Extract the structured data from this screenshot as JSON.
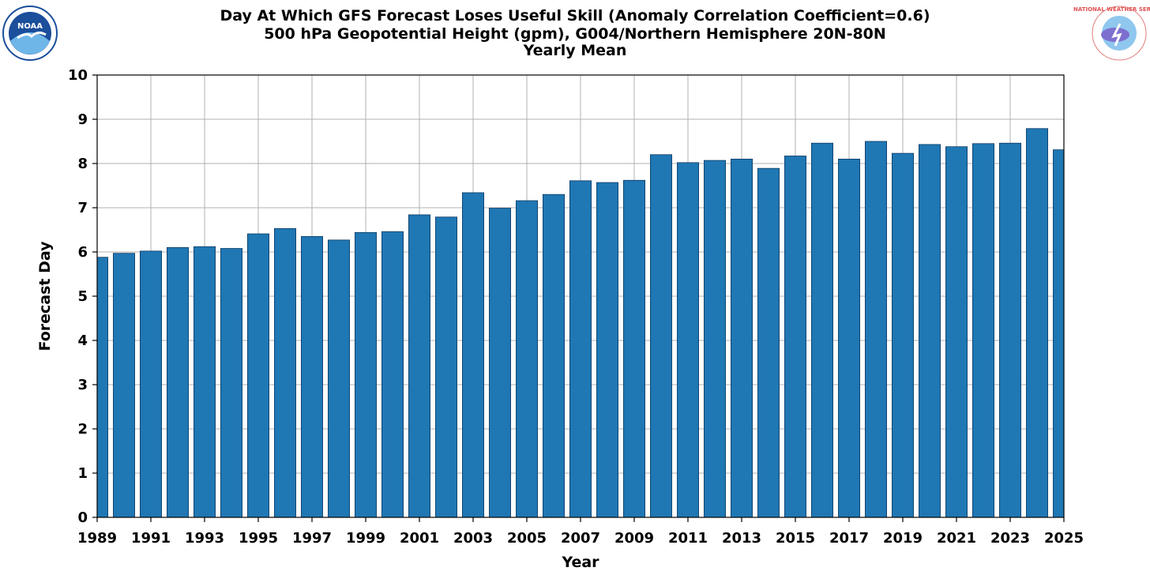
{
  "chart_data": {
    "type": "bar",
    "title_lines": [
      "Day At Which GFS Forecast Loses Useful Skill (Anomaly Correlation Coefficient=0.6)",
      "500 hPa Geopotential Height (gpm), G004/Northern Hemisphere 20N-80N",
      "Yearly Mean"
    ],
    "xlabel": "Year",
    "ylabel": "Forecast Day",
    "xlim": [
      1989,
      2025
    ],
    "ylim": [
      0,
      10
    ],
    "yticks": [
      "0",
      "1",
      "2",
      "3",
      "4",
      "5",
      "6",
      "7",
      "8",
      "9",
      "10"
    ],
    "xticks": [
      "1989",
      "1991",
      "1993",
      "1995",
      "1997",
      "1999",
      "2001",
      "2003",
      "2005",
      "2007",
      "2009",
      "2011",
      "2013",
      "2015",
      "2017",
      "2019",
      "2021",
      "2023",
      "2025"
    ],
    "grid": true,
    "bar_color": "#1f77b4",
    "categories": [
      "1989",
      "1990",
      "1991",
      "1992",
      "1993",
      "1994",
      "1995",
      "1996",
      "1997",
      "1998",
      "1999",
      "2000",
      "2001",
      "2002",
      "2003",
      "2004",
      "2005",
      "2006",
      "2007",
      "2008",
      "2009",
      "2010",
      "2011",
      "2012",
      "2013",
      "2014",
      "2015",
      "2016",
      "2017",
      "2018",
      "2019",
      "2020",
      "2021",
      "2022",
      "2023",
      "2024",
      "2025"
    ],
    "values": [
      5.88,
      5.97,
      6.02,
      6.1,
      6.12,
      6.08,
      6.41,
      6.53,
      6.35,
      6.27,
      6.44,
      6.46,
      6.84,
      6.79,
      7.34,
      6.99,
      7.16,
      7.3,
      7.61,
      7.57,
      7.62,
      8.2,
      8.02,
      8.07,
      8.1,
      7.89,
      8.17,
      8.46,
      8.1,
      8.5,
      8.23,
      8.43,
      8.38,
      8.45,
      8.46,
      8.79,
      8.31
    ]
  },
  "logos": {
    "left": {
      "icon": "noaa-logo",
      "text": "NOAA"
    },
    "right": {
      "icon": "national-weather-service-logo",
      "text": "NATIONAL WEATHER SERVICE"
    }
  }
}
